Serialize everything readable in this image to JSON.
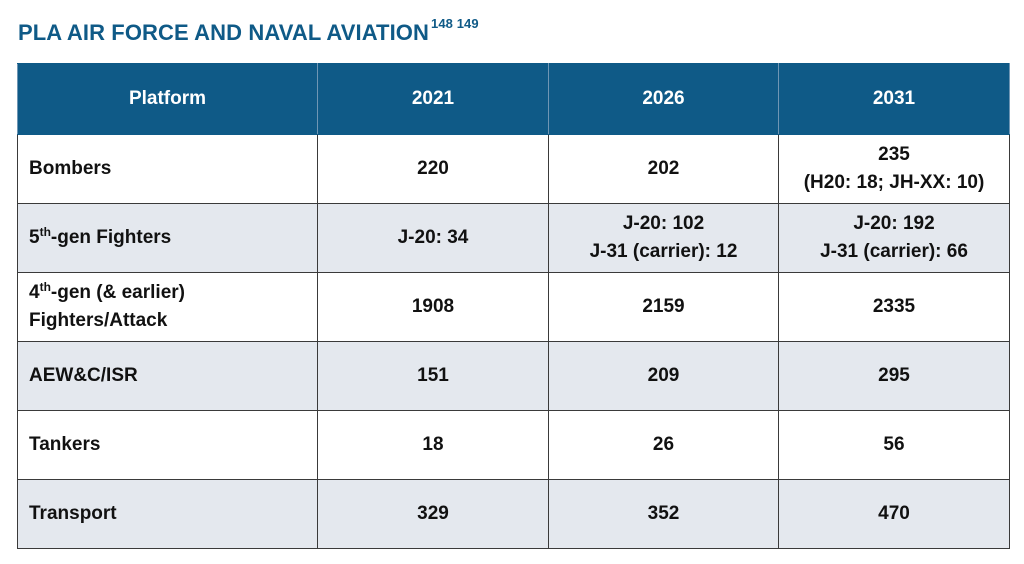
{
  "title": {
    "text": "PLA AIR FORCE AND NAVAL AVIATION",
    "footnote_refs": "148 149"
  },
  "table": {
    "headers": [
      "Platform",
      "2021",
      "2026",
      "2031"
    ],
    "rows": [
      {
        "platform": "Bombers",
        "y2021": [
          "220"
        ],
        "y2026": [
          "202"
        ],
        "y2031": [
          "235",
          "(H20: 18; JH-XX: 10)"
        ]
      },
      {
        "platform_prefix": "5",
        "platform_ordinal": "th",
        "platform_suffix": "-gen Fighters",
        "y2021": [
          "J-20: 34"
        ],
        "y2026": [
          "J-20: 102",
          "J-31 (carrier): 12"
        ],
        "y2031": [
          "J-20: 192",
          "J-31 (carrier): 66"
        ]
      },
      {
        "platform_prefix": "4",
        "platform_ordinal": "th",
        "platform_suffix": "-gen (& earlier)",
        "platform_line2": "Fighters/Attack",
        "y2021": [
          "1908"
        ],
        "y2026": [
          "2159"
        ],
        "y2031": [
          "2335"
        ]
      },
      {
        "platform": "AEW&C/ISR",
        "y2021": [
          "151"
        ],
        "y2026": [
          "209"
        ],
        "y2031": [
          "295"
        ]
      },
      {
        "platform": "Tankers",
        "y2021": [
          "18"
        ],
        "y2026": [
          "26"
        ],
        "y2031": [
          "56"
        ]
      },
      {
        "platform": "Transport",
        "y2021": [
          "329"
        ],
        "y2026": [
          "352"
        ],
        "y2031": [
          "470"
        ]
      }
    ]
  },
  "colors": {
    "header_bg": "#0f5a87",
    "title": "#0f5a87",
    "alt_row_bg": "#e4e8ee"
  }
}
